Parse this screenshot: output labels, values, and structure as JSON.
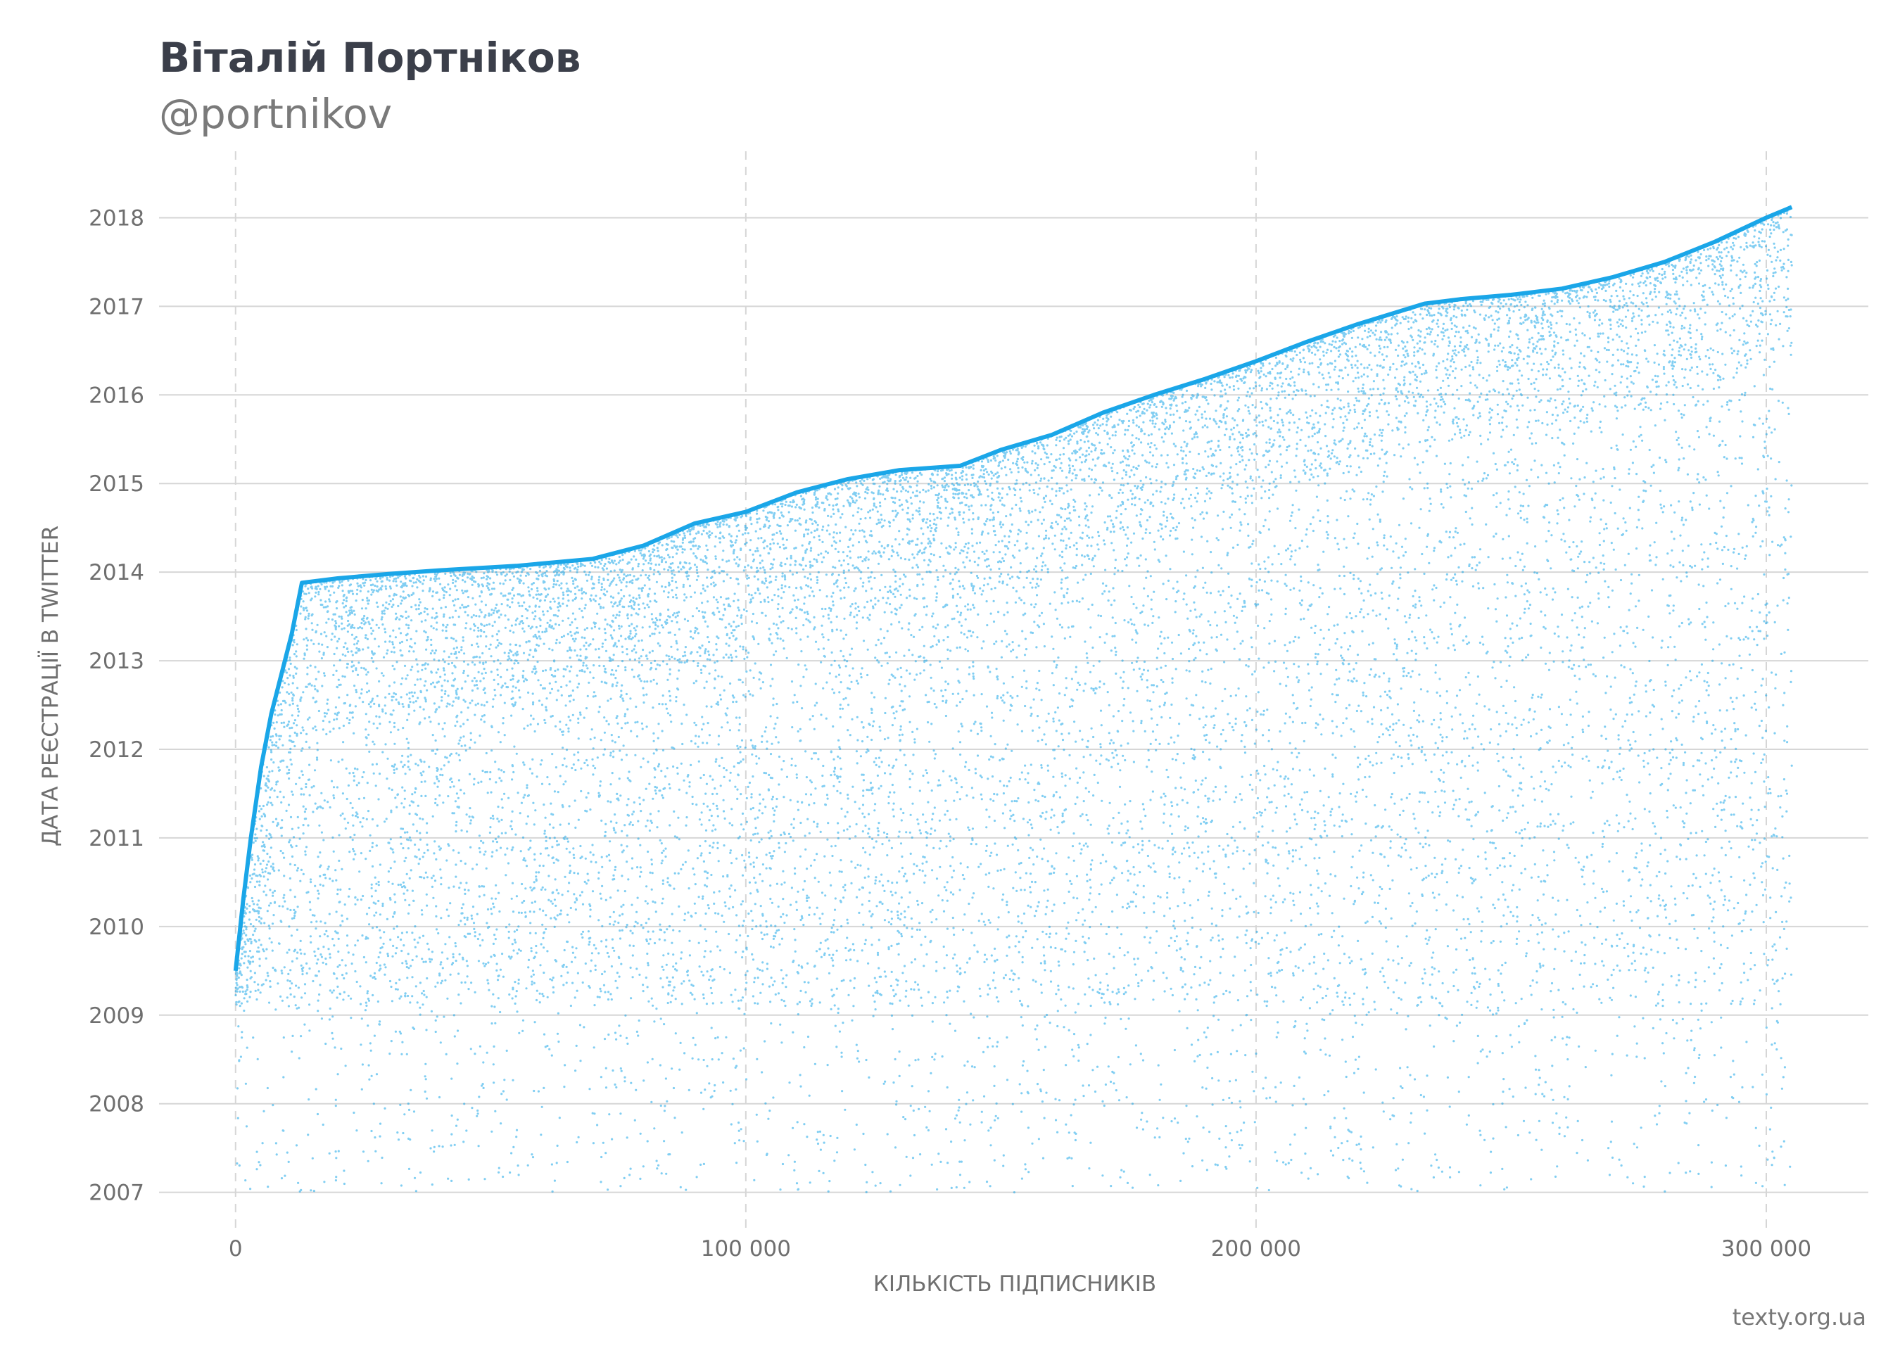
{
  "header": {
    "title": "Віталій Портніков",
    "subtitle": "@portnikov"
  },
  "footer": {
    "source": "texty.org.ua"
  },
  "colors": {
    "points": "#1aa6e8",
    "text_dark": "#3b3f4a",
    "text_muted": "#6f6f6f",
    "gridline": "#d6d6d6"
  },
  "chart_data": {
    "type": "scatter",
    "xlabel": "КІЛЬКІСТЬ ПІДПИСНИКІВ",
    "ylabel": "ДАТА РЕЄСТРАЦІЇ В TWITTER",
    "xlim": [
      -15000,
      320000
    ],
    "ylim": [
      2006.6,
      2018.75
    ],
    "x_ticks": [
      0,
      100000,
      200000,
      300000
    ],
    "x_tick_labels": [
      "0",
      "100 000",
      "200 000",
      "300 000"
    ],
    "y_ticks": [
      2007,
      2008,
      2009,
      2010,
      2011,
      2012,
      2013,
      2014,
      2015,
      2016,
      2017,
      2018
    ],
    "y_tick_labels": [
      "2007",
      "2008",
      "2009",
      "2010",
      "2011",
      "2012",
      "2013",
      "2014",
      "2015",
      "2016",
      "2017",
      "2018"
    ],
    "grid": {
      "x": "dashed",
      "y": "solid"
    },
    "series": [
      {
        "color": "#1aa6e8",
        "total_points": 305000,
        "upper_envelope": {
          "x": [
            0,
            1500,
            3000,
            5000,
            7000,
            9000,
            11000,
            13000,
            20000,
            30000,
            40000,
            55000,
            70000,
            80000,
            90000,
            100000,
            110000,
            120000,
            130000,
            142000,
            150000,
            160000,
            170000,
            180000,
            190000,
            200000,
            210000,
            220000,
            233000,
            240000,
            250000,
            260000,
            270000,
            280000,
            290000,
            300000,
            305000
          ],
          "y": [
            2009.5,
            2010.3,
            2011.0,
            2011.8,
            2012.4,
            2012.85,
            2013.3,
            2013.88,
            2013.93,
            2013.98,
            2014.02,
            2014.07,
            2014.15,
            2014.3,
            2014.55,
            2014.68,
            2014.9,
            2015.05,
            2015.15,
            2015.2,
            2015.38,
            2015.55,
            2015.8,
            2016.0,
            2016.18,
            2016.38,
            2016.6,
            2016.8,
            2017.03,
            2017.08,
            2017.13,
            2017.2,
            2017.33,
            2017.5,
            2017.73,
            2018.0,
            2018.12
          ]
        }
      }
    ]
  }
}
